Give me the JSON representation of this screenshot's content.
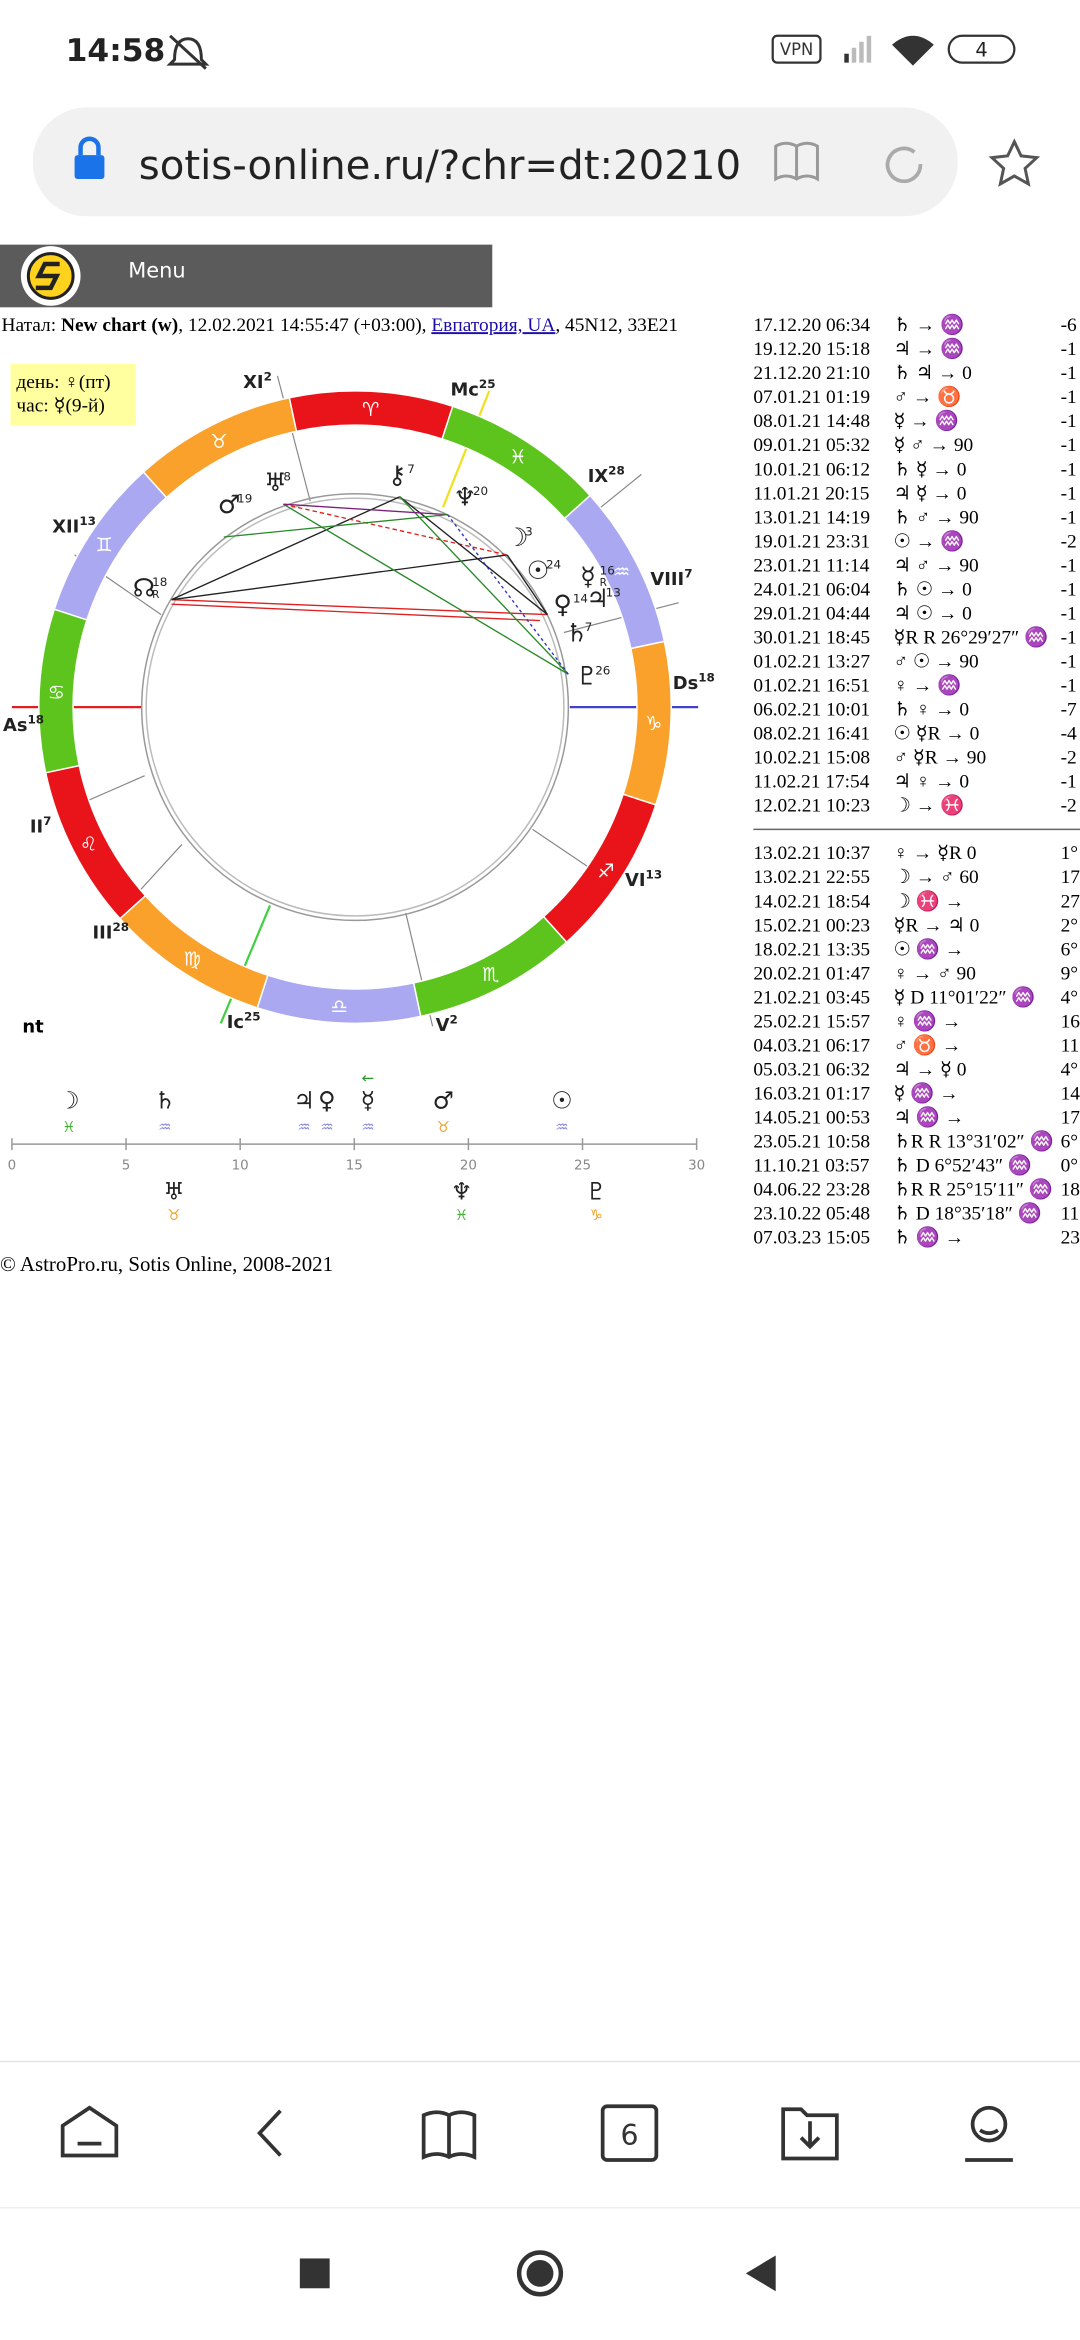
{
  "status": {
    "time": "14:58",
    "vpn": "VPN",
    "battery": "4"
  },
  "browser": {
    "url": "sotis-online.ru/?chr=dt:20210",
    "tabs": "6"
  },
  "site": {
    "menu": "Menu"
  },
  "natal": {
    "prefix": "Натал: ",
    "name": "New chart (w)",
    "datetime": ", 12.02.2021 14:55:47 (+03:00), ",
    "place": "Евпатория, UA",
    "coords": ", 45N12, 33E21"
  },
  "day_box": {
    "day": "день: ♀(пт)",
    "hour": "час: ☿(9-й)"
  },
  "wheel": {
    "signs": [
      "♈",
      "♉",
      "♊",
      "♋",
      "♌",
      "♍",
      "♎",
      "♏",
      "♐",
      "♑",
      "♒",
      "♓"
    ],
    "houses": [
      {
        "name": "As",
        "deg": 18
      },
      {
        "name": "II",
        "deg": 7
      },
      {
        "name": "III",
        "deg": 28
      },
      {
        "name": "Ic",
        "deg": 25
      },
      {
        "name": "V",
        "deg": 2
      },
      {
        "name": "VI",
        "deg": 13
      },
      {
        "name": "Ds",
        "deg": 18
      },
      {
        "name": "VIII",
        "deg": 7
      },
      {
        "name": "IX",
        "deg": 28
      },
      {
        "name": "Mc",
        "deg": 25
      },
      {
        "name": "XI",
        "deg": 2
      },
      {
        "name": "XII",
        "deg": 13
      }
    ],
    "planets": [
      {
        "glyph": "☊",
        "deg": 18,
        "retro": "R"
      },
      {
        "glyph": "♂",
        "deg": 19
      },
      {
        "glyph": "♅",
        "deg": 8
      },
      {
        "glyph": "⚷",
        "deg": 7
      },
      {
        "glyph": "♆",
        "deg": 20
      },
      {
        "glyph": "☽",
        "deg": 3
      },
      {
        "glyph": "☉",
        "deg": 24
      },
      {
        "glyph": "♀",
        "deg": 14
      },
      {
        "glyph": "☿",
        "deg": 16,
        "retro": "R"
      },
      {
        "glyph": "♃",
        "deg": 13
      },
      {
        "glyph": "♄",
        "deg": 7
      },
      {
        "glyph": "♇",
        "deg": 26
      }
    ],
    "label": "nt"
  },
  "timeline": {
    "xlim": [
      0,
      30
    ],
    "xticks": [
      0,
      5,
      10,
      15,
      20,
      25,
      30
    ],
    "arrow": "←",
    "above": [
      {
        "glyph": "☽",
        "sign": "♓",
        "value": 2.5
      },
      {
        "glyph": "♄",
        "sign": "♒",
        "value": 6.7
      },
      {
        "glyph": "♃",
        "sign": "♒",
        "value": 12.8
      },
      {
        "glyph": "♀",
        "sign": "♒",
        "value": 13.8
      },
      {
        "glyph": "☿",
        "sign": "♒",
        "value": 15.6
      },
      {
        "glyph": "♂",
        "sign": "♉",
        "value": 18.9
      },
      {
        "glyph": "☉",
        "sign": "♒",
        "value": 24.1
      }
    ],
    "below": [
      {
        "glyph": "♅",
        "sign": "♉",
        "value": 7.1
      },
      {
        "glyph": "♆",
        "sign": "♓",
        "value": 19.7
      },
      {
        "glyph": "♇",
        "sign": "♑",
        "value": 25.6
      }
    ]
  },
  "events": {
    "past": [
      [
        "17.12.20 06:34",
        "♄ → ♒",
        "-6"
      ],
      [
        "19.12.20 15:18",
        "♃ → ♒",
        "-1"
      ],
      [
        "21.12.20 21:10",
        "♄ ♃ → 0",
        "-1"
      ],
      [
        "07.01.21 01:19",
        "♂ → ♉",
        "-1"
      ],
      [
        "08.01.21 14:48",
        "☿ → ♒",
        "-1"
      ],
      [
        "09.01.21 05:32",
        "☿ ♂ → 90",
        "-1"
      ],
      [
        "10.01.21 06:12",
        "♄ ☿ → 0",
        "-1"
      ],
      [
        "11.01.21 20:15",
        "♃ ☿ → 0",
        "-1"
      ],
      [
        "13.01.21 14:19",
        "♄ ♂ → 90",
        "-1"
      ],
      [
        "19.01.21 23:31",
        "☉ → ♒",
        "-2"
      ],
      [
        "23.01.21 11:14",
        "♃ ♂ → 90",
        "-1"
      ],
      [
        "24.01.21 06:04",
        "♄ ☉ → 0",
        "-1"
      ],
      [
        "29.01.21 04:44",
        "♃ ☉ → 0",
        "-1"
      ],
      [
        "30.01.21 18:45",
        "☿R R 26°29′27″ ♒",
        "-1"
      ],
      [
        "01.02.21 13:27",
        "♂ ☉ → 90",
        "-1"
      ],
      [
        "01.02.21 16:51",
        "♀ → ♒",
        "-1"
      ],
      [
        "06.02.21 10:01",
        "♄ ♀ → 0",
        "-7"
      ],
      [
        "08.02.21 16:41",
        "☉ ☿R → 0",
        "-4"
      ],
      [
        "10.02.21 15:08",
        "♂ ☿R → 90",
        "-2"
      ],
      [
        "11.02.21 17:54",
        "♃ ♀ → 0",
        "-1"
      ],
      [
        "12.02.21 10:23",
        "☽ → ♓",
        "-2"
      ]
    ],
    "future": [
      [
        "13.02.21 10:37",
        "♀ → ☿R 0",
        "1°"
      ],
      [
        "13.02.21 22:55",
        "☽ → ♂ 60",
        "17"
      ],
      [
        "14.02.21 18:54",
        "☽ ♓ →",
        "27"
      ],
      [
        "15.02.21 00:23",
        "☿R → ♃ 0",
        "2°"
      ],
      [
        "18.02.21 13:35",
        "☉ ♒ →",
        "6°"
      ],
      [
        "20.02.21 01:47",
        "♀ → ♂ 90",
        "9°"
      ],
      [
        "21.02.21 03:45",
        "☿ D 11°01′22″ ♒",
        "4°"
      ],
      [
        "25.02.21 15:57",
        "♀ ♒ →",
        "16"
      ],
      [
        "04.03.21 06:17",
        "♂ ♉ →",
        "11"
      ],
      [
        "05.03.21 06:32",
        "♃ → ☿ 0",
        "4°"
      ],
      [
        "16.03.21 01:17",
        "☿ ♒ →",
        "14"
      ],
      [
        "14.05.21 00:53",
        "♃ ♒ →",
        "17"
      ],
      [
        "23.05.21 10:58",
        "♄R R 13°31′02″ ♒",
        "6°"
      ],
      [
        "11.10.21 03:57",
        "♄ D 6°52′43″ ♒",
        "0°"
      ],
      [
        "04.06.22 23:28",
        "♄R R 25°15′11″ ♒",
        "18"
      ],
      [
        "23.10.22 05:48",
        "♄ D 18°35′18″ ♒",
        "11"
      ],
      [
        "07.03.23 15:05",
        "♄ ♒ →",
        "23"
      ]
    ]
  },
  "footer": "© AstroPro.ru, Sotis Online, 2008-2021"
}
